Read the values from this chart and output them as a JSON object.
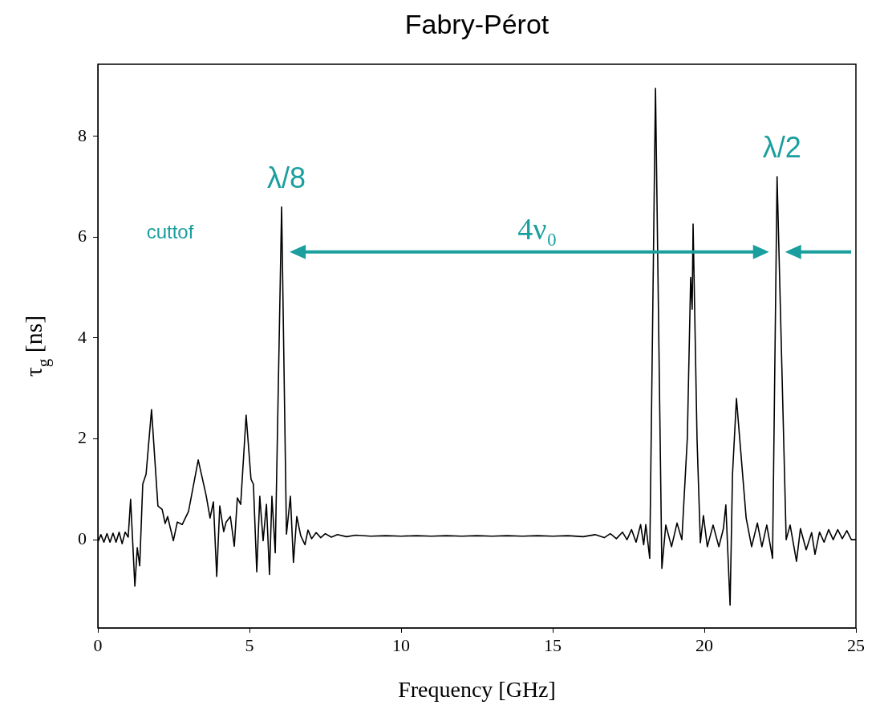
{
  "chart_data": {
    "type": "line",
    "title": "Fabry-Pérot",
    "xlabel": "Frequency [GHz]",
    "ylabel": "τ$_{g}$ [ns]",
    "xlim": [
      0,
      25
    ],
    "xticks": [
      0,
      5,
      10,
      15,
      20,
      25
    ],
    "ylim": [
      -1.75,
      9.43
    ],
    "yticks": [
      0,
      2,
      4,
      6,
      8
    ],
    "annotations": [
      "cuttof",
      {
        "text": "λ/8",
        "x": 6.06,
        "y": 6.6
      },
      "4ν₀",
      {
        "text": "λ/2",
        "x": 22.4,
        "y": 7.2
      }
    ],
    "series": [
      {
        "color": "#000000",
        "x": [
          0,
          0.1,
          0.2,
          0.3,
          0.4,
          0.5,
          0.6,
          0.7,
          0.8,
          0.9,
          1.0,
          1.08,
          1.22,
          1.3,
          1.38,
          1.48,
          1.59,
          1.77,
          1.98,
          2.12,
          2.22,
          2.3,
          2.49,
          2.62,
          2.78,
          2.99,
          3.31,
          3.57,
          3.7,
          3.81,
          3.92,
          4.02,
          4.15,
          4.23,
          4.37,
          4.5,
          4.6,
          4.71,
          4.89,
          5.05,
          5.13,
          5.24,
          5.34,
          5.45,
          5.56,
          5.66,
          5.74,
          5.85,
          6.06,
          6.22,
          6.35,
          6.45,
          6.56,
          6.69,
          6.83,
          6.93,
          7.05,
          7.2,
          7.35,
          7.5,
          7.7,
          7.9,
          8.2,
          8.5,
          9,
          9.5,
          10,
          10.5,
          11,
          11.5,
          12,
          12.5,
          13,
          13.5,
          14,
          14.5,
          15,
          15.5,
          16,
          16.4,
          16.7,
          16.9,
          17.1,
          17.3,
          17.45,
          17.6,
          17.75,
          17.9,
          18.0,
          18.07,
          18.2,
          18.39,
          18.6,
          18.73,
          18.92,
          19.1,
          19.26,
          19.44,
          19.55,
          19.6,
          19.63,
          19.76,
          19.87,
          19.97,
          20.1,
          20.29,
          20.48,
          20.63,
          20.71,
          20.85,
          20.93,
          21.06,
          21.38,
          21.56,
          21.75,
          21.9,
          22.06,
          22.25,
          22.4,
          22.7,
          22.83,
          23.04,
          23.17,
          23.36,
          23.54,
          23.65,
          23.8,
          23.95,
          24.1,
          24.25,
          24.4,
          24.55,
          24.7,
          24.85,
          25
        ],
        "values": [
          -0.05,
          0.1,
          -0.05,
          0.12,
          -0.05,
          0.13,
          -0.05,
          0.15,
          -0.08,
          0.15,
          0.05,
          0.8,
          -0.92,
          -0.16,
          -0.52,
          1.1,
          1.3,
          2.58,
          0.67,
          0.6,
          0.32,
          0.46,
          -0.02,
          0.35,
          0.3,
          0.56,
          1.58,
          0.88,
          0.43,
          0.75,
          -0.73,
          0.67,
          0.16,
          0.35,
          0.46,
          -0.13,
          0.83,
          0.7,
          2.47,
          1.2,
          1.1,
          -0.64,
          0.86,
          -0.02,
          0.7,
          -0.69,
          0.86,
          -0.26,
          6.6,
          0.11,
          0.86,
          -0.45,
          0.46,
          0.08,
          -0.1,
          0.19,
          0.02,
          0.14,
          0.04,
          0.12,
          0.05,
          0.1,
          0.06,
          0.09,
          0.07,
          0.08,
          0.07,
          0.08,
          0.07,
          0.08,
          0.07,
          0.08,
          0.07,
          0.08,
          0.07,
          0.08,
          0.07,
          0.08,
          0.06,
          0.1,
          0.04,
          0.12,
          0.02,
          0.15,
          0.0,
          0.2,
          -0.05,
          0.3,
          -0.1,
          0.3,
          -0.37,
          8.95,
          -0.57,
          0.29,
          -0.14,
          0.33,
          0.0,
          2.02,
          5.2,
          4.57,
          6.26,
          2.0,
          -0.06,
          0.48,
          -0.14,
          0.29,
          -0.14,
          0.22,
          0.69,
          -1.3,
          1.3,
          2.8,
          0.43,
          -0.14,
          0.33,
          -0.14,
          0.29,
          -0.37,
          7.2,
          0.0,
          0.29,
          -0.43,
          0.22,
          -0.2,
          0.14,
          -0.29,
          0.15,
          -0.05,
          0.2,
          0.0,
          0.2,
          0.02,
          0.18,
          0.0,
          0.0
        ]
      }
    ]
  }
}
